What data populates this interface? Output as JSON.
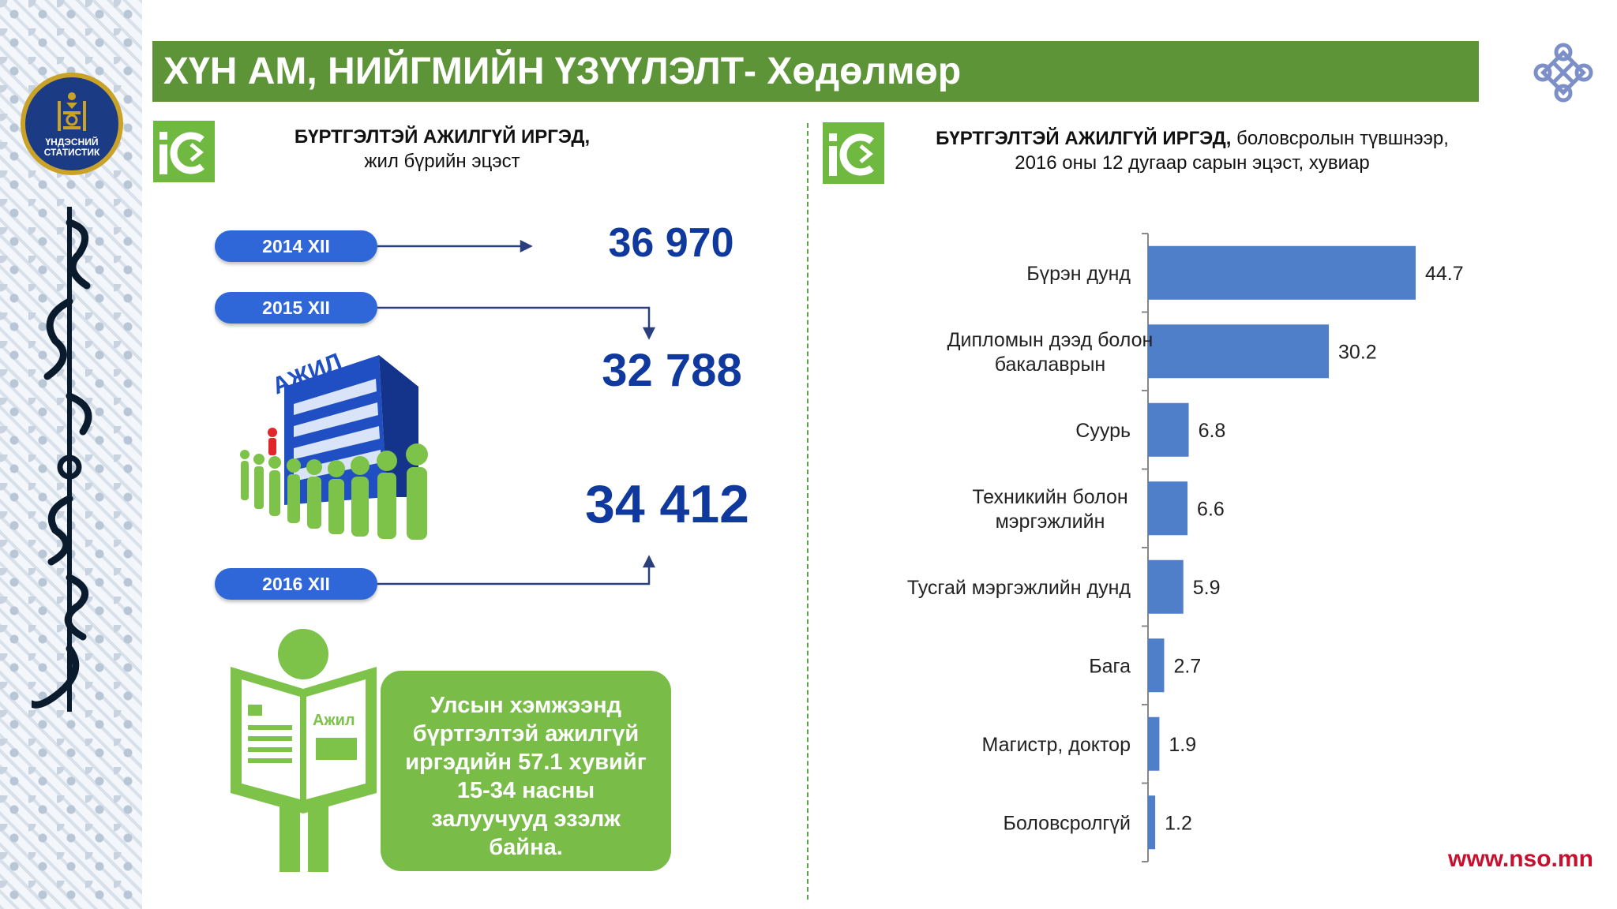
{
  "header": {
    "title": "ХҮН АМ, НИЙГМИЙН ҮЗҮҮЛЭЛТ- Хөдөлмөр"
  },
  "emblem": {
    "line1": "ҮНДЭСНИЙ",
    "line2": "СТАТИСТИК"
  },
  "left_panel": {
    "title_bold": "БҮРТГЭЛТЭЙ АЖИЛГҮЙ ИРГЭД,",
    "title_rest": "жил бүрийн эцэст",
    "years": [
      {
        "label": "2014  XII",
        "value": "36 970"
      },
      {
        "label": "2015  XII",
        "value": "32 788"
      },
      {
        "label": "2016  XII",
        "value": "34 412"
      }
    ],
    "building_sign": "АЖИЛ",
    "newspaper_word": "Ажил",
    "note": "Улсын хэмжээнд\nбүртгэлтэй ажилгүй\nиргэдийн 57.1 хувийг\n15-34 насны\nзалуучууд эзэлж\nбайна."
  },
  "right_panel": {
    "title_bold": "БҮРТГЭЛТЭЙ АЖИЛГҮЙ ИРГЭД,",
    "title_rest1": " боловсролын түвшнээр,",
    "title_line2": "2016 оны 12 дугаар сарын эцэст, хувиар"
  },
  "chart_data": {
    "type": "bar",
    "orientation": "horizontal",
    "categories": [
      [
        "Бүрэн дунд"
      ],
      [
        "Дипломын дээд болон",
        "бакалаврын"
      ],
      [
        "Суурь"
      ],
      [
        "Техникийн болон",
        "мэргэжлийн"
      ],
      [
        "Тусгай мэргэжлийн дунд"
      ],
      [
        "Бага"
      ],
      [
        "Магистр, доктор"
      ],
      [
        "Боловсролгүй"
      ]
    ],
    "values": [
      44.7,
      30.2,
      6.8,
      6.6,
      5.9,
      2.7,
      1.9,
      1.2
    ],
    "data_labels": [
      "44.7",
      "30.2",
      "6.8",
      "6.6",
      "5.9",
      "2.7",
      "1.9",
      "1.2"
    ],
    "bar_color": "#4f7fc8",
    "xlim": [
      0,
      50
    ],
    "grid": false,
    "legend": "none"
  },
  "colors": {
    "banner": "#5e9438",
    "accent_blue": "#10399e",
    "pill": "#2f66d8",
    "note": "#79bd48",
    "url": "#c8102e"
  },
  "footer": {
    "url": "www.nso.mn"
  }
}
